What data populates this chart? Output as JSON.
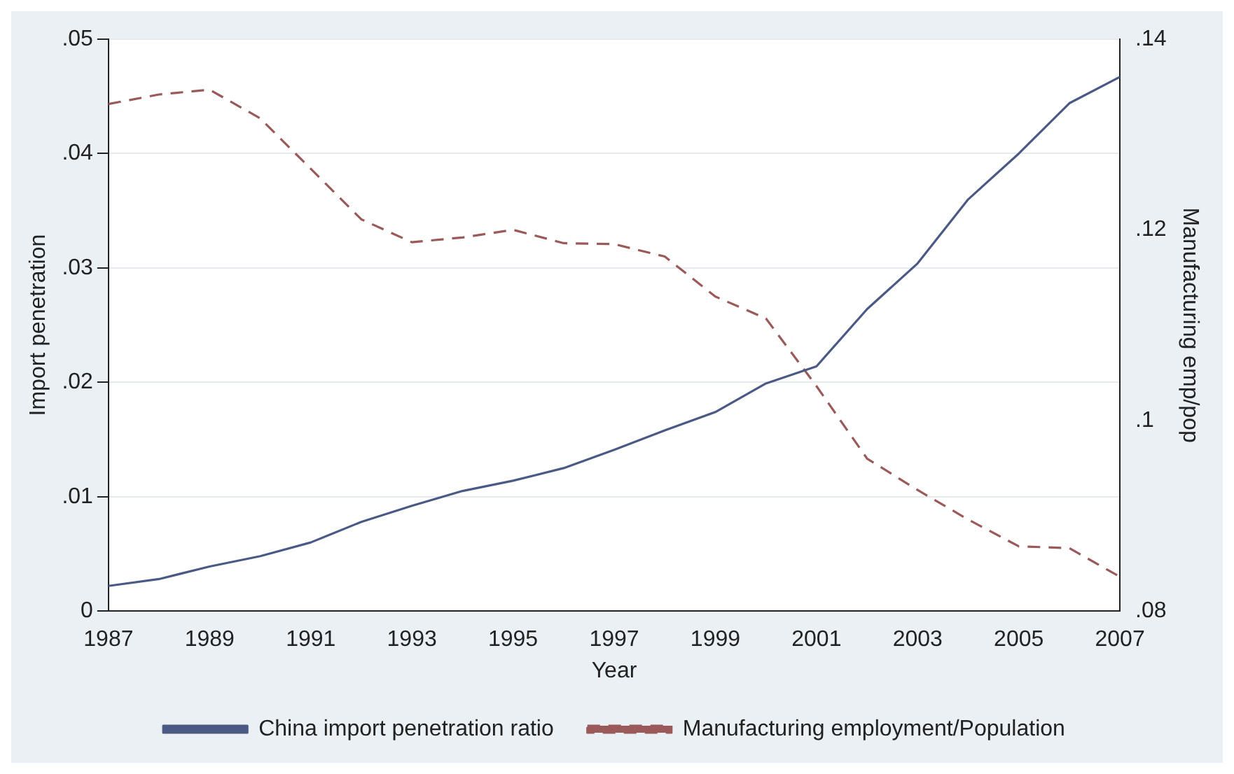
{
  "chart_data": {
    "type": "line",
    "xlabel": "Year",
    "ylabel": "Import penetration",
    "y2label": "Manufacturing emp/pop",
    "x": [
      1987,
      1988,
      1989,
      1990,
      1991,
      1992,
      1993,
      1994,
      1995,
      1996,
      1997,
      1998,
      1999,
      2000,
      2001,
      2002,
      2003,
      2004,
      2005,
      2006,
      2007
    ],
    "series": [
      {
        "name": "China import penetration ratio",
        "color": "#4a5a85",
        "line_style": "solid",
        "values": [
          0.0022,
          0.0028,
          0.0039,
          0.0048,
          0.006,
          0.0078,
          0.0092,
          0.0105,
          0.0114,
          0.0125,
          0.0141,
          0.0158,
          0.0174,
          0.0199,
          0.0214,
          0.0264,
          0.0304,
          0.036,
          0.04,
          0.0444,
          0.0467
        ]
      },
      {
        "name": "Manufacturing employment/Population",
        "color": "#9b5a5a",
        "line_style": "dashed",
        "axis": "y2",
        "values": [
          0.1332,
          0.1342,
          0.1347,
          0.1317,
          0.1264,
          0.1211,
          0.1187,
          0.1192,
          0.12,
          0.1186,
          0.1185,
          0.1172,
          0.113,
          0.1107,
          0.1036,
          0.096,
          0.0927,
          0.0896,
          0.0868,
          0.0866,
          0.0836
        ]
      }
    ],
    "xlim": [
      1987,
      2007
    ],
    "xticks": [
      1987,
      1989,
      1991,
      1993,
      1995,
      1997,
      1999,
      2001,
      2003,
      2005,
      2007
    ],
    "ylim": [
      0,
      0.05
    ],
    "yticks": [
      0,
      {
        "value": 0.01,
        "label": ".01"
      },
      {
        "value": 0.02,
        "label": ".02"
      },
      {
        "value": 0.03,
        "label": ".03"
      },
      {
        "value": 0.04,
        "label": ".04"
      },
      {
        "value": 0.05,
        "label": ".05"
      }
    ],
    "y2lim": [
      0.08,
      0.14
    ],
    "y2ticks": [
      {
        "value": 0.08,
        "label": ".08"
      },
      {
        "value": 0.1,
        "label": ".1"
      },
      {
        "value": 0.12,
        "label": ".12"
      },
      {
        "value": 0.14,
        "label": ".14"
      }
    ],
    "grid": "y",
    "legend": "bottom",
    "marker": "none"
  }
}
